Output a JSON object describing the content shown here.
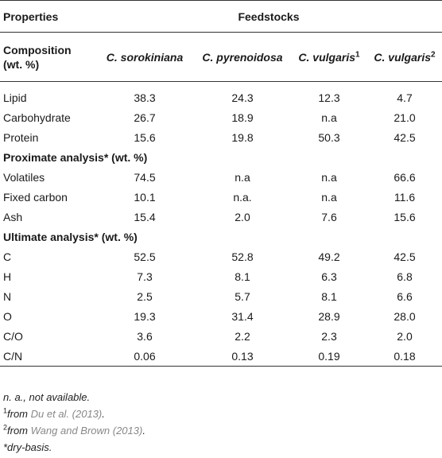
{
  "header": {
    "properties": "Properties",
    "feedstocks": "Feedstocks",
    "composition_line1": "Composition",
    "composition_line2": "(wt. %)",
    "species": [
      {
        "name": "C. sorokiniana",
        "sup": ""
      },
      {
        "name": "C. pyrenoidosa",
        "sup": ""
      },
      {
        "name": "C. vulgaris",
        "sup": "1"
      },
      {
        "name": "C. vulgaris",
        "sup": "2"
      }
    ]
  },
  "composition": [
    {
      "label": "Lipid",
      "values": [
        "38.3",
        "24.3",
        "12.3",
        "4.7"
      ]
    },
    {
      "label": "Carbohydrate",
      "values": [
        "26.7",
        "18.9",
        "n.a",
        "21.0"
      ]
    },
    {
      "label": "Protein",
      "values": [
        "15.6",
        "19.8",
        "50.3",
        "42.5"
      ]
    }
  ],
  "proximate_title": "Proximate analysis* (wt. %)",
  "proximate": [
    {
      "label": "Volatiles",
      "values": [
        "74.5",
        "n.a",
        "n.a",
        "66.6"
      ]
    },
    {
      "label": "Fixed carbon",
      "values": [
        "10.1",
        "n.a.",
        "n.a",
        "11.6"
      ]
    },
    {
      "label": "Ash",
      "values": [
        "15.4",
        "2.0",
        "7.6",
        "15.6"
      ]
    }
  ],
  "ultimate_title": "Ultimate analysis* (wt. %)",
  "ultimate": [
    {
      "label": "C",
      "values": [
        "52.5",
        "52.8",
        "49.2",
        "42.5"
      ]
    },
    {
      "label": "H",
      "values": [
        "7.3",
        "8.1",
        "6.3",
        "6.8"
      ]
    },
    {
      "label": "N",
      "values": [
        "2.5",
        "5.7",
        "8.1",
        "6.6"
      ]
    },
    {
      "label": "O",
      "values": [
        "19.3",
        "31.4",
        "28.9",
        "28.0"
      ]
    },
    {
      "label": "C/O",
      "values": [
        "3.6",
        "2.2",
        "2.3",
        "2.0"
      ]
    },
    {
      "label": "C/N",
      "values": [
        "0.06",
        "0.13",
        "0.19",
        "0.18"
      ]
    }
  ],
  "footnotes": {
    "na": "n. a., not available.",
    "fn1_sup": "1",
    "fn1_prefix": "from ",
    "fn1_ref": "Du et al. (2013)",
    "fn1_suffix": ".",
    "fn2_sup": "2",
    "fn2_prefix": "from ",
    "fn2_ref": "Wang and Brown (2013)",
    "fn2_suffix": ".",
    "dry": "*dry-basis."
  }
}
